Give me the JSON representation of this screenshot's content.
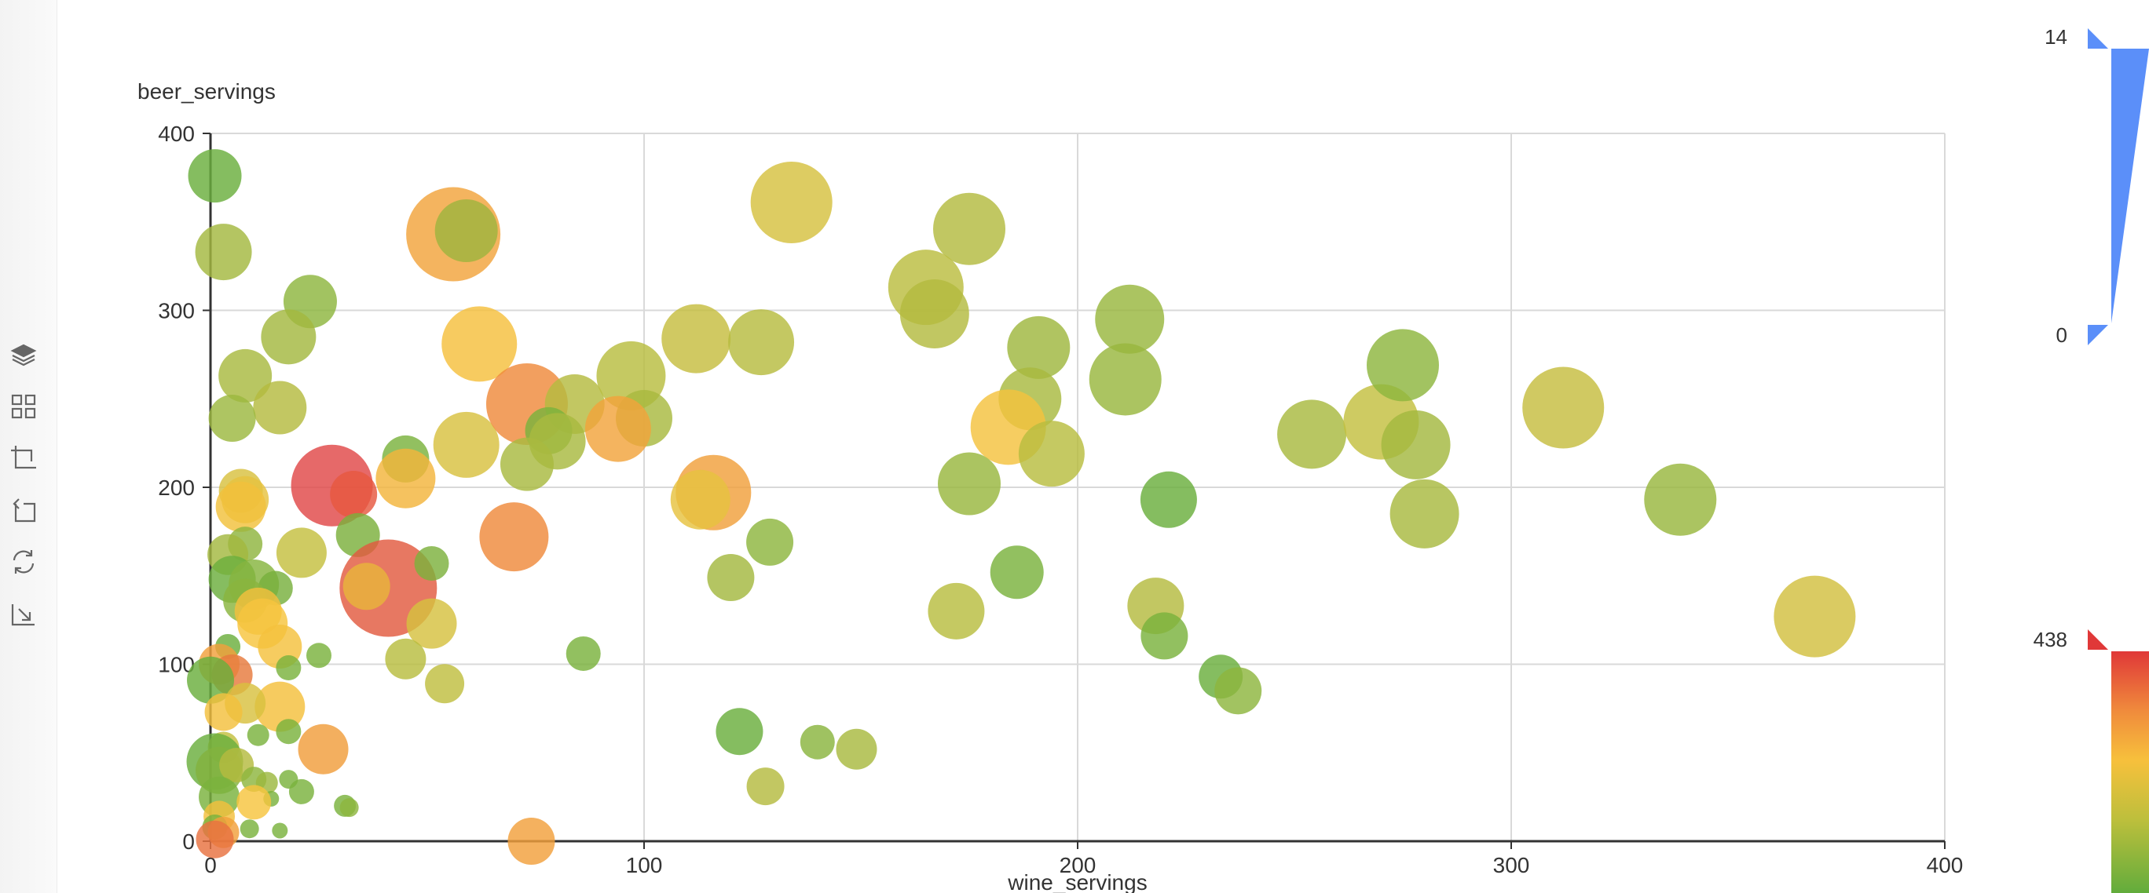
{
  "toolbox": [
    {
      "name": "data-view-icon"
    },
    {
      "name": "data-zoom-icon"
    },
    {
      "name": "zoom-select-icon"
    },
    {
      "name": "zoom-back-icon"
    },
    {
      "name": "restore-icon"
    },
    {
      "name": "save-image-icon"
    }
  ],
  "chart_data": {
    "type": "scatter",
    "xlabel": "wine_servings",
    "ylabel": "beer_servings",
    "xlim": [
      0,
      400
    ],
    "ylim": [
      0,
      400
    ],
    "x_ticks": [
      "0",
      "100",
      "200",
      "300",
      "400"
    ],
    "y_ticks": [
      "0",
      "100",
      "200",
      "300",
      "400"
    ],
    "grid": true,
    "size_range": [
      0,
      14
    ],
    "size_range_labels": [
      "14",
      "0"
    ],
    "color_range": [
      0,
      438
    ],
    "color_range_label_max": "438",
    "colors": {
      "size_legend": "#5b8ff9",
      "gradient": [
        "#e03838",
        "#f08c3c",
        "#f7c03c",
        "#bcbf3c",
        "#8ab43c",
        "#62ac3c"
      ]
    },
    "points": [
      {
        "x": 1,
        "y": 376,
        "r": 34,
        "c": "#6aae3d"
      },
      {
        "x": 3,
        "y": 333,
        "r": 36,
        "c": "#a4b83f"
      },
      {
        "x": 23,
        "y": 305,
        "r": 34,
        "c": "#8db63e"
      },
      {
        "x": 18,
        "y": 285,
        "r": 35,
        "c": "#a4b83f"
      },
      {
        "x": 8,
        "y": 263,
        "r": 34,
        "c": "#a8b940"
      },
      {
        "x": 16,
        "y": 245,
        "r": 34,
        "c": "#b4bb40"
      },
      {
        "x": 5,
        "y": 239,
        "r": 30,
        "c": "#9cb83f"
      },
      {
        "x": 56,
        "y": 343,
        "r": 60,
        "c": "#f2a33c"
      },
      {
        "x": 59,
        "y": 345,
        "r": 40,
        "c": "#9fb33e"
      },
      {
        "x": 62,
        "y": 281,
        "r": 48,
        "c": "#f5bf3d"
      },
      {
        "x": 59,
        "y": 224,
        "r": 42,
        "c": "#d8c13f"
      },
      {
        "x": 45,
        "y": 216,
        "r": 30,
        "c": "#7ab23d"
      },
      {
        "x": 45,
        "y": 205,
        "r": 38,
        "c": "#f3b53c"
      },
      {
        "x": 28,
        "y": 201,
        "r": 52,
        "c": "#e04848"
      },
      {
        "x": 33,
        "y": 196,
        "r": 30,
        "c": "#e75840"
      },
      {
        "x": 34,
        "y": 173,
        "r": 28,
        "c": "#7bb03c"
      },
      {
        "x": 21,
        "y": 163,
        "r": 32,
        "c": "#c5c03f"
      },
      {
        "x": 41,
        "y": 143,
        "r": 62,
        "c": "#e25a40"
      },
      {
        "x": 36,
        "y": 144,
        "r": 30,
        "c": "#e8b33c"
      },
      {
        "x": 51,
        "y": 157,
        "r": 22,
        "c": "#7cb13d"
      },
      {
        "x": 51,
        "y": 123,
        "r": 32,
        "c": "#d5c13f"
      },
      {
        "x": 45,
        "y": 103,
        "r": 26,
        "c": "#b8bd40"
      },
      {
        "x": 54,
        "y": 89,
        "r": 25,
        "c": "#bfbe40"
      },
      {
        "x": 7,
        "y": 198,
        "r": 28,
        "c": "#d8c13f"
      },
      {
        "x": 8,
        "y": 193,
        "r": 30,
        "c": "#e6c23f"
      },
      {
        "x": 7,
        "y": 189,
        "r": 32,
        "c": "#f1c13c"
      },
      {
        "x": 8,
        "y": 168,
        "r": 22,
        "c": "#8fb53e"
      },
      {
        "x": 4,
        "y": 162,
        "r": 26,
        "c": "#a3b83f"
      },
      {
        "x": 5,
        "y": 148,
        "r": 30,
        "c": "#6bae3d"
      },
      {
        "x": 10,
        "y": 145,
        "r": 32,
        "c": "#86b43e"
      },
      {
        "x": 15,
        "y": 143,
        "r": 22,
        "c": "#78b03d"
      },
      {
        "x": 8,
        "y": 136,
        "r": 28,
        "c": "#8ab53e"
      },
      {
        "x": 11,
        "y": 130,
        "r": 30,
        "c": "#f3c03d"
      },
      {
        "x": 12,
        "y": 123,
        "r": 32,
        "c": "#f6c43e"
      },
      {
        "x": 16,
        "y": 110,
        "r": 28,
        "c": "#f4c13d"
      },
      {
        "x": 4,
        "y": 110,
        "r": 16,
        "c": "#6bae3d"
      },
      {
        "x": 25,
        "y": 105,
        "r": 16,
        "c": "#7ab23d"
      },
      {
        "x": 18,
        "y": 98,
        "r": 16,
        "c": "#7ab23d"
      },
      {
        "x": 2,
        "y": 100,
        "r": 26,
        "c": "#f2a03c"
      },
      {
        "x": 5,
        "y": 94,
        "r": 26,
        "c": "#e67a3d"
      },
      {
        "x": 0,
        "y": 91,
        "r": 30,
        "c": "#6aae3d"
      },
      {
        "x": 16,
        "y": 76,
        "r": 32,
        "c": "#f4c03c"
      },
      {
        "x": 8,
        "y": 78,
        "r": 26,
        "c": "#d8c13f"
      },
      {
        "x": 3,
        "y": 73,
        "r": 24,
        "c": "#f3c03d"
      },
      {
        "x": 18,
        "y": 62,
        "r": 16,
        "c": "#7ab23d"
      },
      {
        "x": 11,
        "y": 60,
        "r": 14,
        "c": "#7ab23d"
      },
      {
        "x": 26,
        "y": 52,
        "r": 32,
        "c": "#f09d3c"
      },
      {
        "x": 3,
        "y": 53,
        "r": 20,
        "c": "#c3bf40"
      },
      {
        "x": 1,
        "y": 45,
        "r": 36,
        "c": "#6aae3d"
      },
      {
        "x": 2,
        "y": 40,
        "r": 30,
        "c": "#82b23e"
      },
      {
        "x": 6,
        "y": 43,
        "r": 22,
        "c": "#b5bb40"
      },
      {
        "x": 10,
        "y": 35,
        "r": 16,
        "c": "#8db63e"
      },
      {
        "x": 13,
        "y": 33,
        "r": 14,
        "c": "#9cb83f"
      },
      {
        "x": 18,
        "y": 35,
        "r": 12,
        "c": "#7ab23d"
      },
      {
        "x": 21,
        "y": 28,
        "r": 16,
        "c": "#7ab23d"
      },
      {
        "x": 14,
        "y": 24,
        "r": 10,
        "c": "#7ab23d"
      },
      {
        "x": 2,
        "y": 25,
        "r": 26,
        "c": "#7ab23d"
      },
      {
        "x": 10,
        "y": 22,
        "r": 22,
        "c": "#f6c43e"
      },
      {
        "x": 31,
        "y": 20,
        "r": 14,
        "c": "#7ab23d"
      },
      {
        "x": 32,
        "y": 19,
        "r": 12,
        "c": "#8db63e"
      },
      {
        "x": 2,
        "y": 14,
        "r": 20,
        "c": "#f3c03d"
      },
      {
        "x": 1,
        "y": 8,
        "r": 16,
        "c": "#7ab23d"
      },
      {
        "x": 9,
        "y": 7,
        "r": 12,
        "c": "#7ab23d"
      },
      {
        "x": 16,
        "y": 6,
        "r": 10,
        "c": "#7ab23d"
      },
      {
        "x": 3,
        "y": 5,
        "r": 20,
        "c": "#f2a03c"
      },
      {
        "x": 1,
        "y": 1,
        "r": 24,
        "c": "#e87240"
      },
      {
        "x": 73,
        "y": 247,
        "r": 52,
        "c": "#ef8a3c"
      },
      {
        "x": 84,
        "y": 247,
        "r": 38,
        "c": "#b4bb40"
      },
      {
        "x": 97,
        "y": 263,
        "r": 44,
        "c": "#b8bd40"
      },
      {
        "x": 100,
        "y": 239,
        "r": 36,
        "c": "#a8b940"
      },
      {
        "x": 94,
        "y": 233,
        "r": 42,
        "c": "#f2a33c"
      },
      {
        "x": 78,
        "y": 232,
        "r": 30,
        "c": "#7ab23d"
      },
      {
        "x": 80,
        "y": 226,
        "r": 36,
        "c": "#a8b940"
      },
      {
        "x": 73,
        "y": 213,
        "r": 34,
        "c": "#a8b940"
      },
      {
        "x": 70,
        "y": 172,
        "r": 44,
        "c": "#ef8a3c"
      },
      {
        "x": 86,
        "y": 106,
        "r": 22,
        "c": "#7ab23d"
      },
      {
        "x": 74,
        "y": 0,
        "r": 30,
        "c": "#f2a03c"
      },
      {
        "x": 112,
        "y": 284,
        "r": 44,
        "c": "#c6bd40"
      },
      {
        "x": 127,
        "y": 282,
        "r": 42,
        "c": "#b7bc40"
      },
      {
        "x": 134,
        "y": 361,
        "r": 52,
        "c": "#d5c13f"
      },
      {
        "x": 116,
        "y": 197,
        "r": 48,
        "c": "#f0a03c"
      },
      {
        "x": 113,
        "y": 193,
        "r": 38,
        "c": "#e6c23f"
      },
      {
        "x": 129,
        "y": 169,
        "r": 30,
        "c": "#8db63e"
      },
      {
        "x": 120,
        "y": 149,
        "r": 30,
        "c": "#a4b83f"
      },
      {
        "x": 122,
        "y": 62,
        "r": 30,
        "c": "#6aae3d"
      },
      {
        "x": 140,
        "y": 56,
        "r": 22,
        "c": "#8ab43e"
      },
      {
        "x": 149,
        "y": 52,
        "r": 26,
        "c": "#a8b940"
      },
      {
        "x": 128,
        "y": 31,
        "r": 24,
        "c": "#b4bb40"
      },
      {
        "x": 175,
        "y": 346,
        "r": 46,
        "c": "#b3bb40"
      },
      {
        "x": 165,
        "y": 313,
        "r": 48,
        "c": "#bbbd40"
      },
      {
        "x": 167,
        "y": 298,
        "r": 44,
        "c": "#b3bb40"
      },
      {
        "x": 191,
        "y": 279,
        "r": 40,
        "c": "#9fb73e"
      },
      {
        "x": 189,
        "y": 250,
        "r": 40,
        "c": "#a8b940"
      },
      {
        "x": 184,
        "y": 234,
        "r": 48,
        "c": "#f4c23e"
      },
      {
        "x": 194,
        "y": 219,
        "r": 42,
        "c": "#b8bd40"
      },
      {
        "x": 175,
        "y": 202,
        "r": 40,
        "c": "#98b73e"
      },
      {
        "x": 186,
        "y": 152,
        "r": 34,
        "c": "#7ab23d"
      },
      {
        "x": 172,
        "y": 130,
        "r": 36,
        "c": "#b8bd40"
      },
      {
        "x": 212,
        "y": 295,
        "r": 44,
        "c": "#98b73e"
      },
      {
        "x": 211,
        "y": 261,
        "r": 46,
        "c": "#98b73e"
      },
      {
        "x": 221,
        "y": 193,
        "r": 36,
        "c": "#6aae3d"
      },
      {
        "x": 218,
        "y": 133,
        "r": 36,
        "c": "#b4bb40"
      },
      {
        "x": 220,
        "y": 116,
        "r": 30,
        "c": "#7ab23d"
      },
      {
        "x": 233,
        "y": 93,
        "r": 28,
        "c": "#6aae3d"
      },
      {
        "x": 237,
        "y": 85,
        "r": 30,
        "c": "#8db63e"
      },
      {
        "x": 254,
        "y": 230,
        "r": 44,
        "c": "#a8b940"
      },
      {
        "x": 270,
        "y": 237,
        "r": 48,
        "c": "#c3bf40"
      },
      {
        "x": 275,
        "y": 269,
        "r": 46,
        "c": "#8db63e"
      },
      {
        "x": 278,
        "y": 224,
        "r": 44,
        "c": "#a3b83f"
      },
      {
        "x": 280,
        "y": 185,
        "r": 44,
        "c": "#a8b940"
      },
      {
        "x": 312,
        "y": 245,
        "r": 52,
        "c": "#c6bd40"
      },
      {
        "x": 339,
        "y": 193,
        "r": 46,
        "c": "#98b73e"
      },
      {
        "x": 370,
        "y": 127,
        "r": 52,
        "c": "#d2bf40"
      }
    ]
  }
}
